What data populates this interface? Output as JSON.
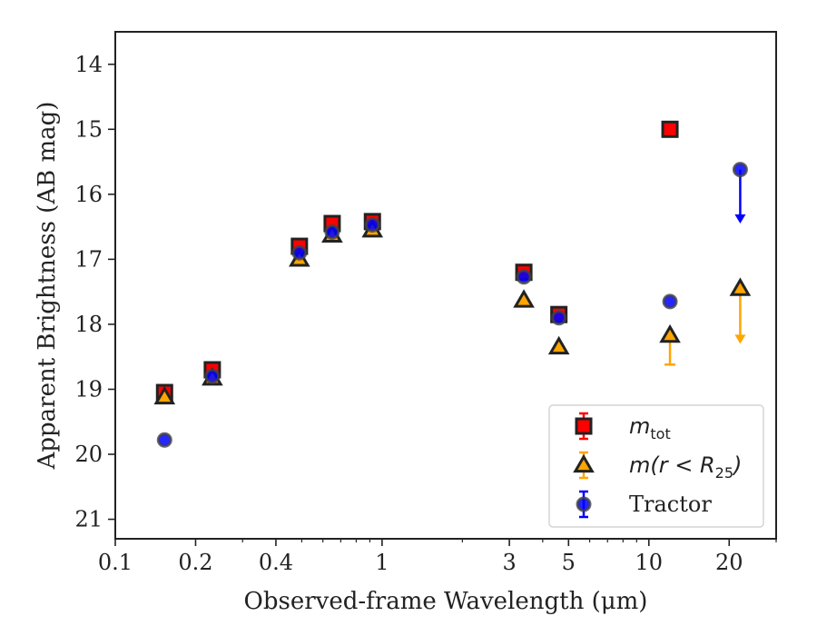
{
  "chart_data": {
    "type": "scatter",
    "xlabel": "Observed-frame Wavelength (μm)",
    "ylabel": "Apparent Brightness (AB mag)",
    "xscale": "log",
    "xlim": [
      0.1,
      30
    ],
    "ylim": [
      21.3,
      13.5
    ],
    "y_inverted": true,
    "x_ticks": [
      0.1,
      0.2,
      0.4,
      1,
      3,
      5,
      10,
      20
    ],
    "x_tick_labels": [
      "0.1",
      "0.2",
      "0.4",
      "1",
      "3",
      "5",
      "10",
      "20"
    ],
    "y_ticks": [
      14,
      15,
      16,
      17,
      18,
      19,
      20,
      21
    ],
    "y_tick_labels": [
      "14",
      "15",
      "16",
      "17",
      "18",
      "19",
      "20",
      "21"
    ],
    "legend_position": "bottom-right",
    "series": [
      {
        "name": "m_tot",
        "legend_main": "m",
        "legend_sub": "tot",
        "marker": "square",
        "color": "#ff0000",
        "points": [
          {
            "x": 0.153,
            "y": 19.05
          },
          {
            "x": 0.231,
            "y": 18.7
          },
          {
            "x": 0.49,
            "y": 16.8
          },
          {
            "x": 0.65,
            "y": 16.45
          },
          {
            "x": 0.92,
            "y": 16.42
          },
          {
            "x": 3.4,
            "y": 17.2
          },
          {
            "x": 4.6,
            "y": 17.85
          },
          {
            "x": 12.0,
            "y": 15.0
          }
        ]
      },
      {
        "name": "m(r < R_25)",
        "legend_main": "m(r < R",
        "legend_sub": "25",
        "legend_tail": ")",
        "marker": "triangle",
        "color": "#ffa500",
        "points": [
          {
            "x": 0.153,
            "y": 19.12
          },
          {
            "x": 0.231,
            "y": 18.83
          },
          {
            "x": 0.49,
            "y": 17.0
          },
          {
            "x": 0.65,
            "y": 16.63
          },
          {
            "x": 0.92,
            "y": 16.55
          },
          {
            "x": 3.4,
            "y": 17.63
          },
          {
            "x": 4.6,
            "y": 18.35
          },
          {
            "x": 12.0,
            "y": 18.17,
            "err_lo": 0.45
          },
          {
            "x": 22.0,
            "y": 17.45,
            "upper_limit_to": 18.3
          }
        ]
      },
      {
        "name": "Tractor",
        "marker": "circle",
        "color": "#0000ff",
        "points": [
          {
            "x": 0.153,
            "y": 19.78
          },
          {
            "x": 0.231,
            "y": 18.8
          },
          {
            "x": 0.49,
            "y": 16.9
          },
          {
            "x": 0.65,
            "y": 16.58
          },
          {
            "x": 0.92,
            "y": 16.47
          },
          {
            "x": 3.4,
            "y": 17.27
          },
          {
            "x": 4.6,
            "y": 17.9
          },
          {
            "x": 12.0,
            "y": 17.65
          },
          {
            "x": 22.0,
            "y": 15.62,
            "upper_limit_to": 16.45
          }
        ]
      }
    ]
  }
}
